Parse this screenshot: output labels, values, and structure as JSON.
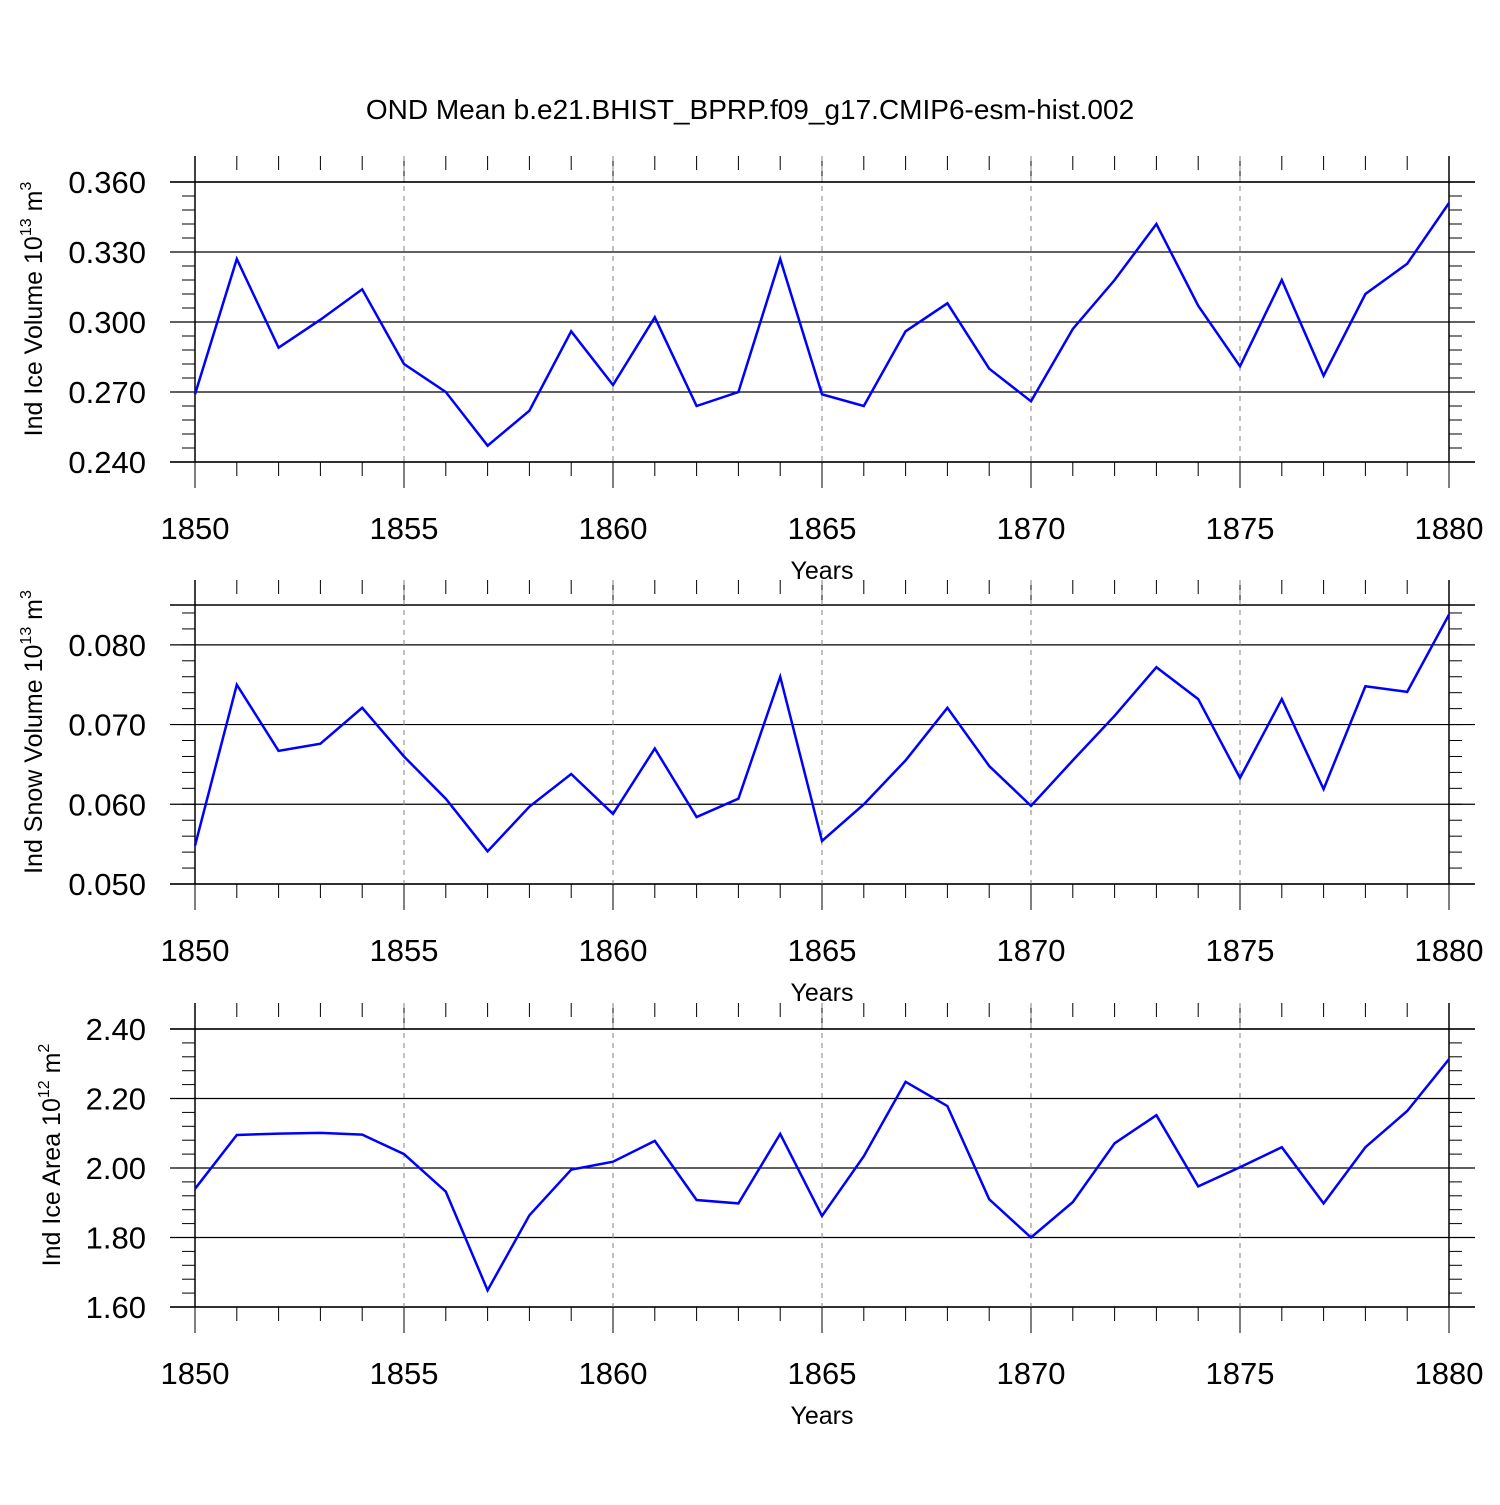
{
  "title": "OND Mean b.e21.BHIST_BPRP.f09_g17.CMIP6-esm-hist.002",
  "colors": {
    "line": "#0000ff",
    "axis": "#000000",
    "grid": "#808080"
  },
  "chart_data": [
    {
      "type": "line",
      "ylabel_main": "Ind Ice Volume 10",
      "ylabel_exp": "13",
      "ylabel_unit": " m",
      "ylabel_unit_exp": "3",
      "xlabel": "Years",
      "xlim": [
        1850,
        1880
      ],
      "ylim": [
        0.24,
        0.36
      ],
      "y_ticks": [
        "0.240",
        "0.270",
        "0.300",
        "0.330",
        "0.360"
      ],
      "y_tick_values": [
        0.24,
        0.27,
        0.3,
        0.33,
        0.36
      ],
      "x_ticks": [
        "1850",
        "1855",
        "1860",
        "1865",
        "1870",
        "1875",
        "1880"
      ],
      "x": [
        1850,
        1851,
        1852,
        1853,
        1854,
        1855,
        1856,
        1857,
        1858,
        1859,
        1860,
        1861,
        1862,
        1863,
        1864,
        1865,
        1866,
        1867,
        1868,
        1869,
        1870,
        1871,
        1872,
        1873,
        1874,
        1875,
        1876,
        1877,
        1878,
        1879,
        1880
      ],
      "values": [
        0.269,
        0.327,
        0.289,
        0.301,
        0.314,
        0.282,
        0.27,
        0.247,
        0.262,
        0.296,
        0.273,
        0.302,
        0.264,
        0.27,
        0.327,
        0.269,
        0.264,
        0.296,
        0.308,
        0.28,
        0.266,
        0.297,
        0.318,
        0.342,
        0.307,
        0.281,
        0.318,
        0.277,
        0.312,
        0.325,
        0.351
      ],
      "grid": "dashed vertical at labeled years"
    },
    {
      "type": "line",
      "ylabel_main": "Ind Snow Volume 10",
      "ylabel_exp": "13",
      "ylabel_unit": " m",
      "ylabel_unit_exp": "3",
      "xlabel": "Years",
      "xlim": [
        1850,
        1880
      ],
      "ylim": [
        0.05,
        0.085
      ],
      "y_ticks": [
        "0.050",
        "0.060",
        "0.070",
        "0.080"
      ],
      "y_tick_values": [
        0.05,
        0.06,
        0.07,
        0.08
      ],
      "x_ticks": [
        "1850",
        "1855",
        "1860",
        "1865",
        "1870",
        "1875",
        "1880"
      ],
      "x": [
        1850,
        1851,
        1852,
        1853,
        1854,
        1855,
        1856,
        1857,
        1858,
        1859,
        1860,
        1861,
        1862,
        1863,
        1864,
        1865,
        1866,
        1867,
        1868,
        1869,
        1870,
        1871,
        1872,
        1873,
        1874,
        1875,
        1876,
        1877,
        1878,
        1879,
        1880
      ],
      "values": [
        0.0548,
        0.075,
        0.0667,
        0.0676,
        0.0721,
        0.066,
        0.0607,
        0.0541,
        0.0597,
        0.0638,
        0.0588,
        0.067,
        0.0584,
        0.0607,
        0.076,
        0.0554,
        0.06,
        0.0655,
        0.0721,
        0.0648,
        0.0598,
        0.0655,
        0.0711,
        0.0772,
        0.0732,
        0.0633,
        0.0732,
        0.0619,
        0.0748,
        0.0741,
        0.0838
      ],
      "grid": "dashed vertical at labeled years"
    },
    {
      "type": "line",
      "ylabel_main": "Ind Ice Area 10",
      "ylabel_exp": "12",
      "ylabel_unit": " m",
      "ylabel_unit_exp": "2",
      "xlabel": "Years",
      "xlim": [
        1850,
        1880
      ],
      "ylim": [
        1.6,
        2.4
      ],
      "y_ticks": [
        "1.60",
        "1.80",
        "2.00",
        "2.20",
        "2.40"
      ],
      "y_tick_values": [
        1.6,
        1.8,
        2.0,
        2.2,
        2.4
      ],
      "x_ticks": [
        "1850",
        "1855",
        "1860",
        "1865",
        "1870",
        "1875",
        "1880"
      ],
      "x": [
        1850,
        1851,
        1852,
        1853,
        1854,
        1855,
        1856,
        1857,
        1858,
        1859,
        1860,
        1861,
        1862,
        1863,
        1864,
        1865,
        1866,
        1867,
        1868,
        1869,
        1870,
        1871,
        1872,
        1873,
        1874,
        1875,
        1876,
        1877,
        1878,
        1879,
        1880
      ],
      "values": [
        1.94,
        2.095,
        2.099,
        2.101,
        2.096,
        2.04,
        1.932,
        1.648,
        1.864,
        1.995,
        2.018,
        2.078,
        1.908,
        1.898,
        2.098,
        1.862,
        2.034,
        2.248,
        2.178,
        1.91,
        1.8,
        1.902,
        2.071,
        2.152,
        1.947,
        2.002,
        2.06,
        1.898,
        2.06,
        2.164,
        2.313
      ],
      "grid": "dashed vertical at labeled years"
    }
  ]
}
